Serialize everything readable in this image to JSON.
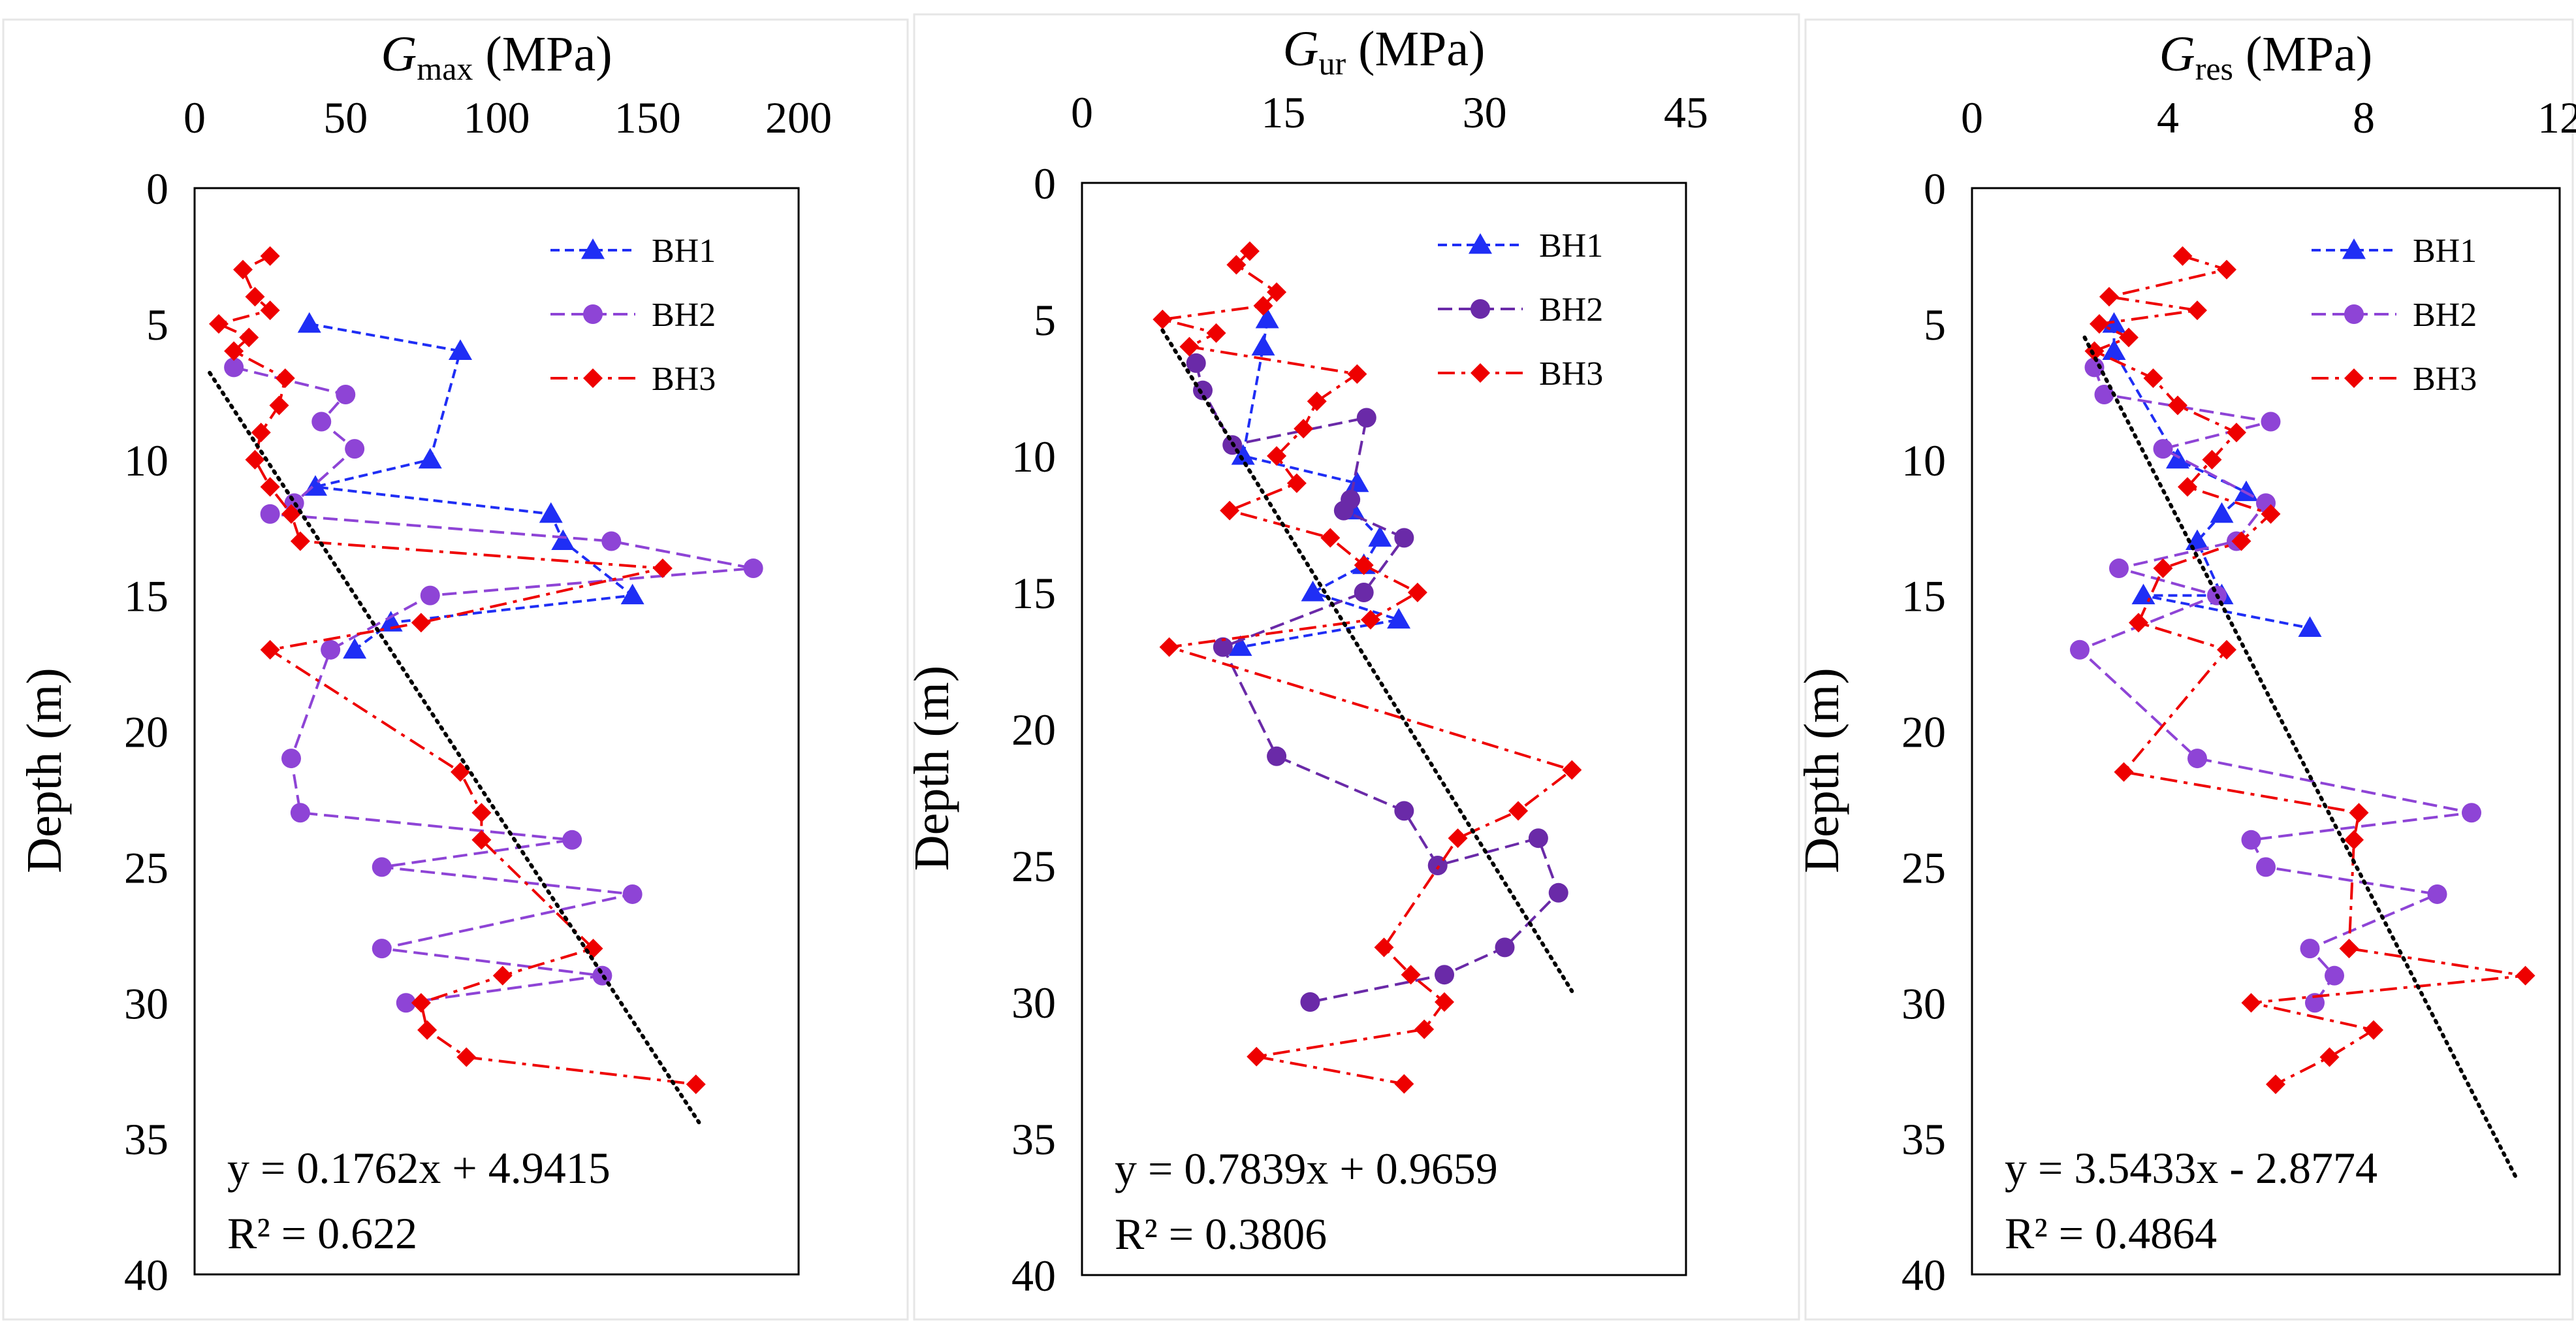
{
  "colors": {
    "BH1": "#1f2ef5",
    "BH2": "#8e44d6",
    "BH2_dark": "#6a2aa8",
    "BH3": "#ee0000",
    "trend": "#000000"
  },
  "y_label": "Depth (m)",
  "chart_data": [
    {
      "type": "scatter",
      "x_label_main": "G",
      "x_label_sub": "max",
      "x_label_unit": " (MPa)",
      "xlim": [
        0,
        200
      ],
      "xticks": [
        0,
        50,
        100,
        150,
        200
      ],
      "ylim": [
        0,
        40
      ],
      "yticks": [
        0,
        5,
        10,
        15,
        20,
        25,
        30,
        35,
        40
      ],
      "legend": [
        "BH1",
        "BH2",
        "BH3"
      ],
      "bh2_color_key": "BH2",
      "series": [
        {
          "name": "BH1",
          "points": [
            [
              38,
              5
            ],
            [
              88,
              6
            ],
            [
              78,
              10
            ],
            [
              40,
              11
            ],
            [
              118,
              12
            ],
            [
              122,
              13
            ],
            [
              145,
              15
            ],
            [
              65,
              16
            ],
            [
              53,
              17
            ]
          ]
        },
        {
          "name": "BH2",
          "points": [
            [
              13,
              6.6
            ],
            [
              50,
              7.6
            ],
            [
              42,
              8.6
            ],
            [
              53,
              9.6
            ],
            [
              33,
              11.6
            ],
            [
              25,
              12
            ],
            [
              138,
              13
            ],
            [
              185,
              14
            ],
            [
              78,
              15
            ],
            [
              45,
              17
            ],
            [
              32,
              21
            ],
            [
              35,
              23
            ],
            [
              125,
              24
            ],
            [
              62,
              25
            ],
            [
              145,
              26
            ],
            [
              62,
              28
            ],
            [
              135,
              29
            ],
            [
              70,
              30
            ]
          ]
        },
        {
          "name": "BH3",
          "points": [
            [
              25,
              2.5
            ],
            [
              16,
              3
            ],
            [
              20,
              4
            ],
            [
              25,
              4.5
            ],
            [
              8,
              5
            ],
            [
              18,
              5.5
            ],
            [
              13,
              6
            ],
            [
              30,
              7
            ],
            [
              28,
              8
            ],
            [
              22,
              9
            ],
            [
              20,
              10
            ],
            [
              25,
              11
            ],
            [
              32,
              12
            ],
            [
              35,
              13
            ],
            [
              155,
              14
            ],
            [
              75,
              16
            ],
            [
              25,
              17
            ],
            [
              88,
              21.5
            ],
            [
              95,
              23
            ],
            [
              95,
              24
            ],
            [
              132,
              28
            ],
            [
              102,
              29
            ],
            [
              75,
              30
            ],
            [
              77,
              31
            ],
            [
              90,
              32
            ],
            [
              166,
              33
            ]
          ]
        }
      ],
      "trendline": {
        "x": [
          5,
          167
        ],
        "y": [
          6.8,
          34.4
        ]
      },
      "equation": "y = 0.1762x + 4.9415",
      "r2": "R² = 0.622"
    },
    {
      "type": "scatter",
      "x_label_main": "G",
      "x_label_sub": "ur",
      "x_label_unit": " (MPa)",
      "xlim": [
        0,
        45
      ],
      "xticks": [
        0,
        15,
        30,
        45
      ],
      "ylim": [
        0,
        40
      ],
      "yticks": [
        0,
        5,
        10,
        15,
        20,
        25,
        30,
        35,
        40
      ],
      "legend": [
        "BH1",
        "BH2",
        "BH3"
      ],
      "bh2_color_key": "BH2_dark",
      "series": [
        {
          "name": "BH1",
          "points": [
            [
              13.8,
              5
            ],
            [
              13.5,
              6
            ],
            [
              12,
              10
            ],
            [
              20.5,
              11
            ],
            [
              20.2,
              12
            ],
            [
              22.2,
              13
            ],
            [
              21,
              14
            ],
            [
              17.2,
              15
            ],
            [
              23.6,
              16
            ],
            [
              11.8,
              17
            ]
          ]
        },
        {
          "name": "BH2",
          "points": [
            [
              8.5,
              6.6
            ],
            [
              9,
              7.6
            ],
            [
              11.2,
              9.6
            ],
            [
              21.2,
              8.6
            ],
            [
              20,
              11.6
            ],
            [
              19.5,
              12
            ],
            [
              24,
              13
            ],
            [
              21,
              15
            ],
            [
              10.5,
              17
            ],
            [
              14.5,
              21
            ],
            [
              24,
              23
            ],
            [
              26.5,
              25
            ],
            [
              34,
              24
            ],
            [
              35.5,
              26
            ],
            [
              31.5,
              28
            ],
            [
              27,
              29
            ],
            [
              17,
              30
            ]
          ]
        },
        {
          "name": "BH3",
          "points": [
            [
              12.5,
              2.5
            ],
            [
              11.5,
              3
            ],
            [
              14.5,
              4
            ],
            [
              13.5,
              4.5
            ],
            [
              6,
              5
            ],
            [
              10,
              5.5
            ],
            [
              8,
              6
            ],
            [
              20.5,
              7
            ],
            [
              17.5,
              8
            ],
            [
              16.5,
              9
            ],
            [
              14.5,
              10
            ],
            [
              16,
              11
            ],
            [
              11,
              12
            ],
            [
              18.5,
              13
            ],
            [
              21,
              14
            ],
            [
              25,
              15
            ],
            [
              21.5,
              16
            ],
            [
              6.5,
              17
            ],
            [
              36.5,
              21.5
            ],
            [
              32.5,
              23
            ],
            [
              28,
              24
            ],
            [
              22.5,
              28
            ],
            [
              24.5,
              29
            ],
            [
              27,
              30
            ],
            [
              25.5,
              31
            ],
            [
              13,
              32
            ],
            [
              24,
              33
            ]
          ]
        }
      ],
      "trendline": {
        "x": [
          6,
          36.5
        ],
        "y": [
          5.4,
          29.6
        ]
      },
      "equation": "y = 0.7839x + 0.9659",
      "r2": "R² = 0.3806"
    },
    {
      "type": "scatter",
      "x_label_main": "G",
      "x_label_sub": "res",
      "x_label_unit": " (MPa)",
      "xlim": [
        0,
        12
      ],
      "xticks": [
        0,
        4,
        8,
        12
      ],
      "ylim": [
        0,
        40
      ],
      "yticks": [
        0,
        5,
        10,
        15,
        20,
        25,
        30,
        35,
        40
      ],
      "legend": [
        "BH1",
        "BH2",
        "BH3"
      ],
      "bh2_color_key": "BH2",
      "series": [
        {
          "name": "BH1",
          "points": [
            [
              2.9,
              5
            ],
            [
              2.9,
              6
            ],
            [
              4.2,
              10
            ],
            [
              5.6,
              11.2
            ],
            [
              5.1,
              12
            ],
            [
              4.6,
              13
            ],
            [
              5.1,
              15
            ],
            [
              3.5,
              15
            ],
            [
              6.9,
              16.2
            ]
          ]
        },
        {
          "name": "BH2",
          "points": [
            [
              2.5,
              6.6
            ],
            [
              2.7,
              7.6
            ],
            [
              6.1,
              8.6
            ],
            [
              3.9,
              9.6
            ],
            [
              6.0,
              11.6
            ],
            [
              5.4,
              13
            ],
            [
              3.0,
              14
            ],
            [
              5.0,
              15
            ],
            [
              2.2,
              17
            ],
            [
              4.6,
              21
            ],
            [
              10.2,
              23
            ],
            [
              5.7,
              24
            ],
            [
              6.0,
              25
            ],
            [
              9.5,
              26
            ],
            [
              6.9,
              28
            ],
            [
              7.4,
              29
            ],
            [
              7.0,
              30
            ]
          ]
        },
        {
          "name": "BH3",
          "points": [
            [
              4.3,
              2.5
            ],
            [
              5.2,
              3
            ],
            [
              2.8,
              4
            ],
            [
              4.6,
              4.5
            ],
            [
              2.6,
              5
            ],
            [
              3.2,
              5.5
            ],
            [
              2.5,
              6
            ],
            [
              3.7,
              7
            ],
            [
              4.2,
              8
            ],
            [
              5.4,
              9
            ],
            [
              4.9,
              10
            ],
            [
              4.4,
              11
            ],
            [
              6.1,
              12
            ],
            [
              5.5,
              13
            ],
            [
              3.9,
              14
            ],
            [
              3.4,
              16
            ],
            [
              5.2,
              17
            ],
            [
              3.1,
              21.5
            ],
            [
              7.9,
              23
            ],
            [
              7.8,
              24
            ],
            [
              7.7,
              28
            ],
            [
              11.3,
              29
            ],
            [
              5.7,
              30
            ],
            [
              8.2,
              31
            ],
            [
              7.3,
              32
            ],
            [
              6.2,
              33
            ]
          ]
        }
      ],
      "trendline": {
        "x": [
          2.3,
          11.1
        ],
        "y": [
          5.5,
          36.4
        ]
      },
      "equation": "y = 3.5433x - 2.8774",
      "r2": "R² = 0.4864"
    }
  ]
}
